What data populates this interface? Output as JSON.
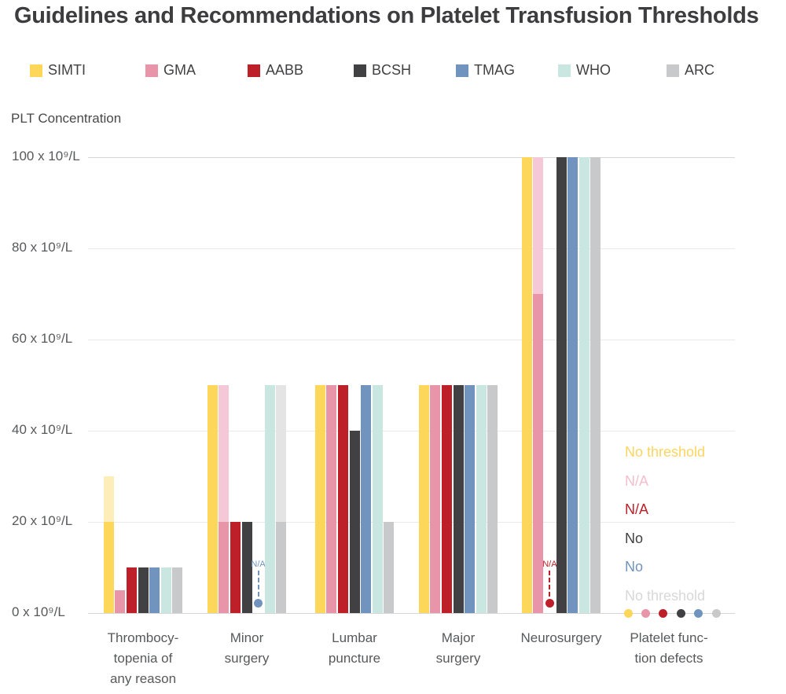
{
  "title": "Guidelines and Recommendations on Platelet Transfusion Thresholds",
  "y_axis_title": "PLT Concentration",
  "legend": [
    {
      "name": "SIMTI",
      "color": "#FDD75A"
    },
    {
      "name": "GMA",
      "color": "#E894A9"
    },
    {
      "name": "AABB",
      "color": "#BE2029"
    },
    {
      "name": "BCSH",
      "color": "#414042"
    },
    {
      "name": "TMAG",
      "color": "#7094BE"
    },
    {
      "name": "WHO",
      "color": "#C9E6E0"
    },
    {
      "name": "ARC",
      "color": "#C8C9CB"
    }
  ],
  "chart_data": {
    "type": "bar",
    "title": "Guidelines and Recommendations on Platelet Transfusion Thresholds",
    "ylabel": "PLT Concentration",
    "unit": "x 10⁹/L",
    "ylim": [
      0,
      100
    ],
    "grid": true,
    "legend_position": "top",
    "y_ticks": [
      0,
      20,
      40,
      60,
      80,
      100
    ],
    "y_tick_labels": [
      "0 x 10⁹/L",
      "20 x 10⁹/L",
      "40 x 10⁹/L",
      "60 x 10⁹/L",
      "80 x 10⁹/L",
      "100 x 10⁹/L"
    ],
    "faded_colors": {
      "SIMTI": "#FCEDB9",
      "GMA": "#F4C8D6",
      "ARC": "#E4E4E5"
    },
    "categories": [
      "Thrombocytopenia of any reason",
      "Minor surgery",
      "Lumbar puncture",
      "Major surgery",
      "Neurosurgery",
      "Platelet function defects"
    ],
    "groups": [
      {
        "label_lines": [
          "Thrombocy-",
          "topenia of",
          "any reason"
        ],
        "bars": [
          {
            "org": "SIMTI",
            "value": 20,
            "fade_to": 30
          },
          {
            "org": "GMA",
            "value": 5
          },
          {
            "org": "AABB",
            "value": 10
          },
          {
            "org": "BCSH",
            "value": 10
          },
          {
            "org": "TMAG",
            "value": 10
          },
          {
            "org": "WHO",
            "value": 10
          },
          {
            "org": "ARC",
            "value": 10
          }
        ]
      },
      {
        "label_lines": [
          "Minor",
          "surgery"
        ],
        "bars": [
          {
            "org": "SIMTI",
            "value": 50
          },
          {
            "org": "GMA",
            "value": 20,
            "fade_to": 50
          },
          {
            "org": "AABB",
            "value": 20
          },
          {
            "org": "BCSH",
            "value": 20
          },
          {
            "org": "TMAG",
            "na": true,
            "na_label": "N/A"
          },
          {
            "org": "WHO",
            "value": 50
          },
          {
            "org": "ARC",
            "value": 20,
            "fade_to": 50
          }
        ]
      },
      {
        "label_lines": [
          "Lumbar",
          "puncture"
        ],
        "bars": [
          {
            "org": "SIMTI",
            "value": 50
          },
          {
            "org": "GMA",
            "value": 50
          },
          {
            "org": "AABB",
            "value": 50
          },
          {
            "org": "BCSH",
            "value": 40
          },
          {
            "org": "TMAG",
            "value": 50
          },
          {
            "org": "WHO",
            "value": 50
          },
          {
            "org": "ARC",
            "value": 20
          }
        ]
      },
      {
        "label_lines": [
          "Major",
          "surgery"
        ],
        "bars": [
          {
            "org": "SIMTI",
            "value": 50
          },
          {
            "org": "GMA",
            "value": 50
          },
          {
            "org": "AABB",
            "value": 50
          },
          {
            "org": "BCSH",
            "value": 50
          },
          {
            "org": "TMAG",
            "value": 50
          },
          {
            "org": "WHO",
            "value": 50
          },
          {
            "org": "ARC",
            "value": 50
          }
        ]
      },
      {
        "label_lines": [
          "Neurosurgery"
        ],
        "bars": [
          {
            "org": "SIMTI",
            "value": 100
          },
          {
            "org": "GMA",
            "value": 70,
            "fade_to": 100
          },
          {
            "org": "AABB",
            "na": true,
            "na_label": "N/A"
          },
          {
            "org": "BCSH",
            "value": 100
          },
          {
            "org": "TMAG",
            "value": 100
          },
          {
            "org": "WHO",
            "value": 100
          },
          {
            "org": "ARC",
            "value": 100
          }
        ]
      },
      {
        "label_lines": [
          "Platelet func-",
          "tion defects"
        ],
        "annotations": [
          {
            "org": "SIMTI",
            "text": "No threshold",
            "color": "#FCD561"
          },
          {
            "org": "GMA",
            "text": "N/A",
            "color": "#F3BECD"
          },
          {
            "org": "AABB",
            "text": "N/A",
            "color": "#BE2029"
          },
          {
            "org": "BCSH",
            "text": "No",
            "color": "#414042"
          },
          {
            "org": "TMAG",
            "text": "No",
            "color": "#7094BE"
          },
          {
            "org": "ARC",
            "text": "No threshold",
            "color": "#D8D8D8"
          }
        ],
        "dots": [
          "SIMTI",
          "GMA",
          "AABB",
          "BCSH",
          "TMAG",
          "ARC"
        ]
      }
    ]
  }
}
